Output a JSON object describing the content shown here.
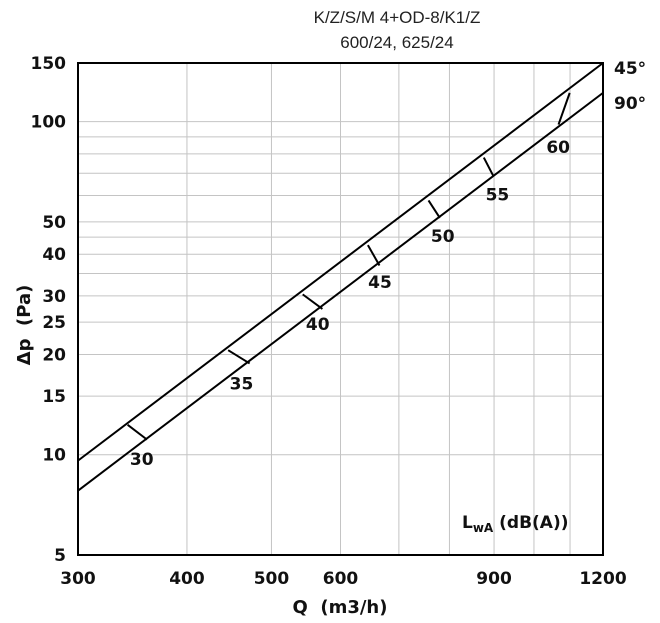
{
  "chart_data": {
    "type": "line",
    "title": "K/Z/S/M 4+OD-8/K1/Z",
    "subtitle": "600/24, 625/24",
    "xlabel": "Q  (m3/h)",
    "ylabel": "Δp  (Pa)",
    "x_scale": "log",
    "y_scale": "log",
    "xlim": [
      300,
      1200
    ],
    "ylim": [
      5,
      150
    ],
    "x_ticks": [
      300,
      400,
      500,
      600,
      900,
      1200
    ],
    "y_ticks": [
      5,
      10,
      15,
      20,
      25,
      30,
      40,
      50,
      100,
      150
    ],
    "x_grid": [
      300,
      400,
      500,
      600,
      700,
      800,
      900,
      1000,
      1100,
      1200
    ],
    "y_grid": [
      5,
      10,
      15,
      20,
      25,
      30,
      35,
      40,
      45,
      50,
      60,
      70,
      80,
      90,
      100,
      150
    ],
    "grid": true,
    "series": [
      {
        "name": "45°",
        "x": [
          300,
          1200
        ],
        "y": [
          9.6,
          150
        ]
      },
      {
        "name": "90°",
        "x": [
          300,
          1200
        ],
        "y": [
          7.8,
          122
        ]
      }
    ],
    "sound_annotation": {
      "label_main": "L",
      "label_sub": "wA",
      "label_unit": " (dB(A))"
    },
    "sound_levels": [
      {
        "label": "30",
        "x1": 342,
        "y1": 12.3,
        "x2": 360,
        "y2": 11.1,
        "lx": 355,
        "ly": 9.3
      },
      {
        "label": "35",
        "x1": 446,
        "y1": 20.6,
        "x2": 472,
        "y2": 18.8,
        "lx": 462,
        "ly": 15.7
      },
      {
        "label": "40",
        "x1": 543,
        "y1": 30.3,
        "x2": 572,
        "y2": 27.4,
        "lx": 565,
        "ly": 23.7
      },
      {
        "label": "45",
        "x1": 645,
        "y1": 42.6,
        "x2": 665,
        "y2": 37.0,
        "lx": 666,
        "ly": 31.7
      },
      {
        "label": "50",
        "x1": 757,
        "y1": 58.0,
        "x2": 780,
        "y2": 51.4,
        "lx": 786,
        "ly": 43.5
      },
      {
        "label": "55",
        "x1": 876,
        "y1": 78.0,
        "x2": 899,
        "y2": 68.4,
        "lx": 908,
        "ly": 58.0
      },
      {
        "label": "60",
        "x1": 1099,
        "y1": 122.0,
        "x2": 1067,
        "y2": 98.0,
        "lx": 1066,
        "ly": 80.5
      }
    ]
  }
}
